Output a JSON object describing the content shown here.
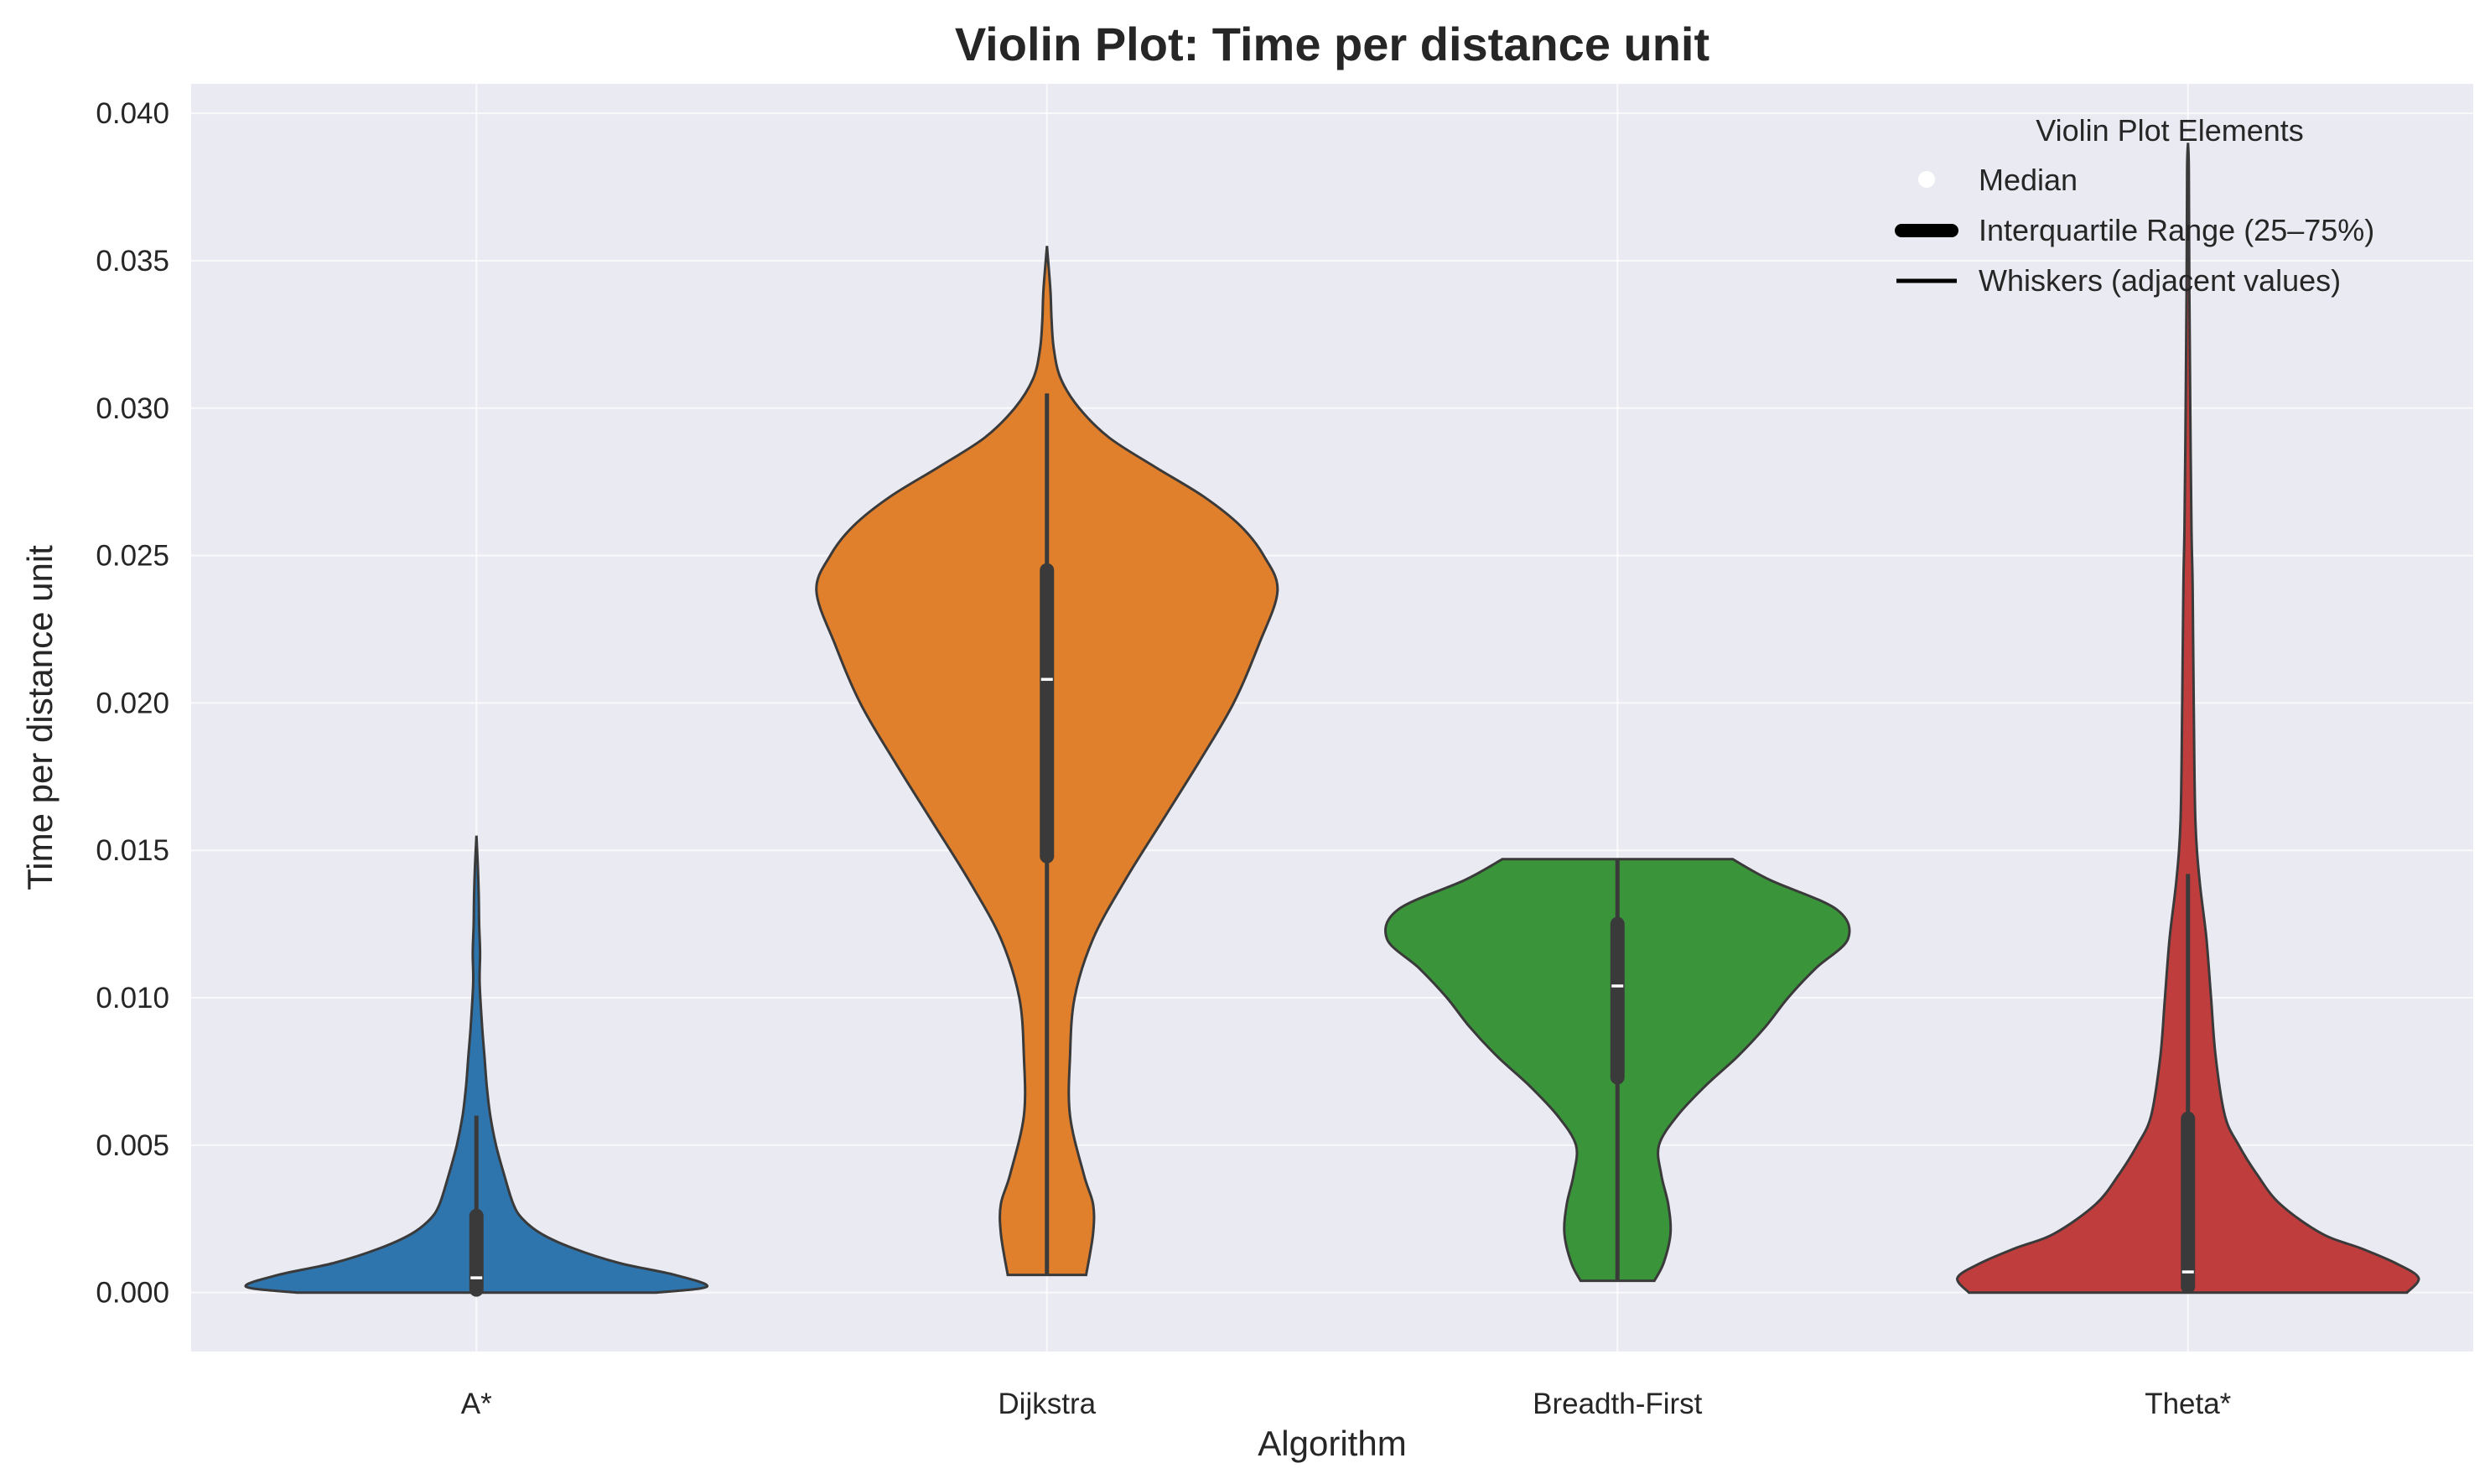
{
  "chart_data": {
    "type": "violin",
    "title": "Violin Plot: Time per distance unit",
    "xlabel": "Algorithm",
    "ylabel": "Time per distance unit",
    "ylim": [
      -0.002,
      0.041
    ],
    "yticks": [
      "0.000",
      "0.005",
      "0.010",
      "0.015",
      "0.020",
      "0.025",
      "0.030",
      "0.035",
      "0.040"
    ],
    "grid": true,
    "categories": [
      "A*",
      "Dijkstra",
      "Breadth-First",
      "Theta*"
    ],
    "colors": [
      "#2e74ad",
      "#e07f2c",
      "#3a953a",
      "#c03d3e"
    ],
    "series": [
      {
        "category": "A*",
        "min": 0.0,
        "max": 0.0155,
        "q1": 0.0001,
        "median": 0.0005,
        "q3": 0.0026,
        "whisker_low": 0.0,
        "whisker_high": 0.006,
        "density": [
          [
            0.0,
            0.78
          ],
          [
            0.0002,
            1.0
          ],
          [
            0.0006,
            0.86
          ],
          [
            0.001,
            0.62
          ],
          [
            0.0015,
            0.42
          ],
          [
            0.002,
            0.28
          ],
          [
            0.0025,
            0.2
          ],
          [
            0.003,
            0.16
          ],
          [
            0.004,
            0.12
          ],
          [
            0.005,
            0.085
          ],
          [
            0.006,
            0.06
          ],
          [
            0.007,
            0.045
          ],
          [
            0.008,
            0.035
          ],
          [
            0.009,
            0.025
          ],
          [
            0.0105,
            0.014
          ],
          [
            0.0115,
            0.016
          ],
          [
            0.0125,
            0.012
          ],
          [
            0.0135,
            0.01
          ],
          [
            0.0145,
            0.006
          ],
          [
            0.0155,
            0.0
          ]
        ]
      },
      {
        "category": "Dijkstra",
        "min": 0.0006,
        "max": 0.0355,
        "q1": 0.0148,
        "median": 0.0208,
        "q3": 0.0245,
        "whisker_low": 0.0006,
        "whisker_high": 0.0305,
        "density": [
          [
            0.0006,
            0.17
          ],
          [
            0.002,
            0.2
          ],
          [
            0.003,
            0.2
          ],
          [
            0.004,
            0.16
          ],
          [
            0.006,
            0.1
          ],
          [
            0.008,
            0.1
          ],
          [
            0.01,
            0.12
          ],
          [
            0.012,
            0.2
          ],
          [
            0.014,
            0.34
          ],
          [
            0.016,
            0.5
          ],
          [
            0.018,
            0.66
          ],
          [
            0.02,
            0.81
          ],
          [
            0.022,
            0.92
          ],
          [
            0.0238,
            1.0
          ],
          [
            0.025,
            0.94
          ],
          [
            0.026,
            0.84
          ],
          [
            0.027,
            0.68
          ],
          [
            0.028,
            0.47
          ],
          [
            0.029,
            0.27
          ],
          [
            0.03,
            0.14
          ],
          [
            0.031,
            0.06
          ],
          [
            0.032,
            0.03
          ],
          [
            0.033,
            0.02
          ],
          [
            0.034,
            0.015
          ],
          [
            0.0355,
            0.0
          ]
        ]
      },
      {
        "category": "Breadth-First",
        "min": 0.0004,
        "max": 0.0147,
        "q1": 0.0073,
        "median": 0.0104,
        "q3": 0.0125,
        "whisker_low": 0.0004,
        "whisker_high": 0.0147,
        "density": [
          [
            0.0004,
            0.16
          ],
          [
            0.001,
            0.2
          ],
          [
            0.002,
            0.23
          ],
          [
            0.003,
            0.22
          ],
          [
            0.004,
            0.19
          ],
          [
            0.005,
            0.18
          ],
          [
            0.006,
            0.26
          ],
          [
            0.007,
            0.38
          ],
          [
            0.008,
            0.52
          ],
          [
            0.009,
            0.64
          ],
          [
            0.01,
            0.74
          ],
          [
            0.011,
            0.86
          ],
          [
            0.012,
            1.0
          ],
          [
            0.013,
            0.95
          ],
          [
            0.014,
            0.66
          ],
          [
            0.0147,
            0.5
          ]
        ]
      },
      {
        "category": "Theta*",
        "min": 0.0,
        "max": 0.039,
        "q1": 0.0002,
        "median": 0.0007,
        "q3": 0.0059,
        "whisker_low": 0.0,
        "whisker_high": 0.0142,
        "density": [
          [
            0.0,
            0.95
          ],
          [
            0.0005,
            1.0
          ],
          [
            0.001,
            0.9
          ],
          [
            0.0015,
            0.75
          ],
          [
            0.002,
            0.58
          ],
          [
            0.003,
            0.4
          ],
          [
            0.004,
            0.3
          ],
          [
            0.005,
            0.22
          ],
          [
            0.006,
            0.16
          ],
          [
            0.008,
            0.12
          ],
          [
            0.01,
            0.1
          ],
          [
            0.012,
            0.08
          ],
          [
            0.014,
            0.05
          ],
          [
            0.016,
            0.032
          ],
          [
            0.02,
            0.025
          ],
          [
            0.024,
            0.02
          ],
          [
            0.026,
            0.015
          ],
          [
            0.03,
            0.01
          ],
          [
            0.034,
            0.006
          ],
          [
            0.038,
            0.004
          ],
          [
            0.039,
            0.0
          ]
        ]
      }
    ],
    "legend": {
      "title": "Violin Plot Elements",
      "placement": "top-right",
      "items": [
        {
          "label": "Median",
          "marker": "dot"
        },
        {
          "label": "Interquartile Range (25–75%)",
          "marker": "thick-line"
        },
        {
          "label": "Whiskers (adjacent values)",
          "marker": "thin-line"
        }
      ]
    },
    "style": {
      "plot_background": "#eaeaf2",
      "grid_color": "#ffffff",
      "edge_color": "#3a3a3a",
      "box_color": "#3a3a3a",
      "median_color": "#ffffff"
    }
  }
}
